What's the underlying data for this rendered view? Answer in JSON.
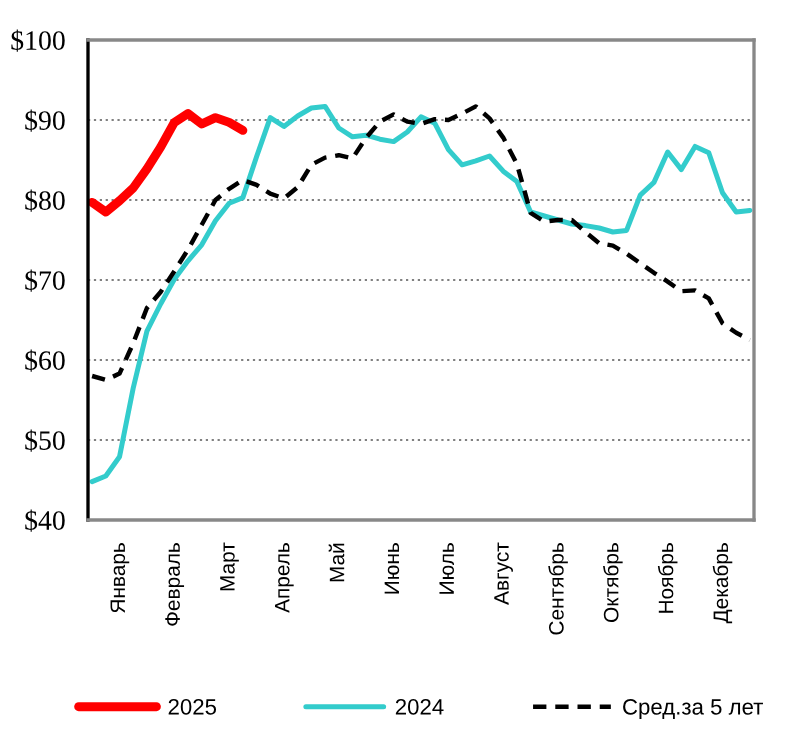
{
  "chart_data": {
    "type": "line",
    "categories": [
      null,
      null,
      "Январь",
      null,
      null,
      null,
      "Февраль",
      null,
      null,
      null,
      "Март",
      null,
      null,
      null,
      "Апрель",
      null,
      null,
      null,
      "Май",
      null,
      null,
      null,
      "Июнь",
      null,
      null,
      null,
      "Июль",
      null,
      null,
      null,
      "Август",
      null,
      null,
      null,
      "Сентябрь",
      null,
      null,
      null,
      "Октябрь",
      null,
      null,
      null,
      "Ноябрь",
      null,
      null,
      null,
      "Декабрь",
      null,
      null
    ],
    "ylim": [
      40,
      100
    ],
    "yticks": [
      {
        "value": 40,
        "label": "$40"
      },
      {
        "value": 50,
        "label": "$50"
      },
      {
        "value": 60,
        "label": "$60"
      },
      {
        "value": 70,
        "label": "$70"
      },
      {
        "value": 80,
        "label": "$80"
      },
      {
        "value": 90,
        "label": "$90"
      },
      {
        "value": 100,
        "label": "$100"
      }
    ],
    "grid": "y",
    "legend": "bottom",
    "series": [
      {
        "name": "2025",
        "color": "#ff0000",
        "line_style": "solid",
        "values": [
          79.7,
          78.5,
          79.9,
          81.5,
          83.9,
          86.6,
          89.7,
          90.8,
          89.5,
          90.3,
          89.7,
          88.7,
          null,
          null,
          null,
          null,
          null,
          null,
          null,
          null,
          null,
          null,
          null,
          null,
          null,
          null,
          null,
          null,
          null,
          null,
          null,
          null,
          null,
          null,
          null,
          null,
          null,
          null,
          null,
          null,
          null,
          null,
          null,
          null,
          null,
          null,
          null,
          null,
          null
        ]
      },
      {
        "name": "2024",
        "color": "#33cccc",
        "line_style": "solid",
        "values": [
          44.8,
          45.5,
          47.9,
          56.5,
          63.6,
          67.0,
          70.1,
          72.4,
          74.4,
          77.4,
          79.6,
          80.3,
          85.4,
          90.3,
          89.2,
          90.5,
          91.5,
          91.7,
          89.0,
          87.9,
          88.1,
          87.6,
          87.3,
          88.5,
          90.4,
          89.6,
          86.3,
          84.4,
          84.9,
          85.5,
          83.6,
          82.3,
          78.5,
          78.0,
          77.5,
          77.0,
          76.8,
          76.5,
          76.0,
          76.2,
          80.6,
          82.2,
          86.0,
          83.8,
          86.7,
          85.9,
          80.9,
          78.5,
          78.7
        ]
      },
      {
        "name": "Сред.за 5 лет",
        "color": "#000000",
        "line_style": "dashed",
        "values": [
          58,
          57.5,
          58.3,
          62.1,
          66.5,
          68.5,
          71.1,
          73.8,
          76.9,
          80,
          81.4,
          82.5,
          81.9,
          80.8,
          80.2,
          81.6,
          84.4,
          85.3,
          85.6,
          85.2,
          87.8,
          89.8,
          90.7,
          89.8,
          89.5,
          90.1,
          90.0,
          90.8,
          91.7,
          90.2,
          87.8,
          84.5,
          78.4,
          77.3,
          77.5,
          77.5,
          76.0,
          74.6,
          74.3,
          73.3,
          72.1,
          70.9,
          69.8,
          68.6,
          68.7,
          67.7,
          64.6,
          63.4,
          62.5
        ]
      }
    ]
  }
}
